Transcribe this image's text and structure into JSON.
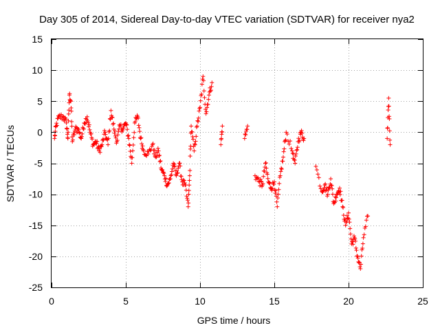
{
  "chart_data": {
    "type": "scatter",
    "title": "Day 305 of 2014, Sidereal Day-to-day VTEC variation (SDTVAR) for receiver nya2",
    "xlabel": "GPS time / hours",
    "ylabel": "SDTVAR / TECUs",
    "xlim": [
      0,
      25
    ],
    "ylim": [
      -25,
      15
    ],
    "xticks": [
      0,
      5,
      10,
      15,
      20,
      25
    ],
    "yticks": [
      15,
      10,
      5,
      0,
      -5,
      -10,
      -15,
      -20,
      -25
    ],
    "xtick_labels": [
      "0",
      "5",
      "10",
      "15",
      "20",
      "25"
    ],
    "ytick_labels": [
      "15",
      "10",
      "5",
      "0",
      "-5",
      "-10",
      "-15",
      "-20",
      "-25"
    ],
    "grid": true,
    "marker": "+",
    "color": "#ff0000",
    "series": [
      {
        "name": "nya2",
        "anchors": [
          [
            0.2,
            -1.0
          ],
          [
            0.3,
            1.0
          ],
          [
            0.5,
            2.5
          ],
          [
            0.8,
            2.5
          ],
          [
            1.0,
            1.5
          ],
          [
            1.1,
            -1.0
          ],
          [
            1.2,
            6.0
          ],
          [
            1.3,
            5.0
          ],
          [
            1.4,
            -1.5
          ],
          [
            1.6,
            0.5
          ],
          [
            1.8,
            0.5
          ],
          [
            2.0,
            -1.0
          ],
          [
            2.2,
            1.5
          ],
          [
            2.4,
            2.5
          ],
          [
            2.6,
            0.0
          ],
          [
            2.8,
            -2.0
          ],
          [
            3.0,
            -1.5
          ],
          [
            3.2,
            -3.0
          ],
          [
            3.4,
            -2.0
          ],
          [
            3.6,
            0.0
          ],
          [
            3.8,
            -2.0
          ],
          [
            4.0,
            3.5
          ],
          [
            4.2,
            0.5
          ],
          [
            4.4,
            -1.5
          ],
          [
            4.6,
            1.0
          ],
          [
            4.8,
            0.5
          ],
          [
            5.0,
            1.5
          ],
          [
            5.2,
            -1.0
          ],
          [
            5.4,
            -5.0
          ],
          [
            5.6,
            1.5
          ],
          [
            5.8,
            2.5
          ],
          [
            6.0,
            -1.0
          ],
          [
            6.2,
            -3.0
          ],
          [
            6.5,
            -3.5
          ],
          [
            6.8,
            -2.0
          ],
          [
            7.0,
            -4.0
          ],
          [
            7.2,
            -3.0
          ],
          [
            7.4,
            -6.0
          ],
          [
            7.6,
            -7.0
          ],
          [
            7.8,
            -8.5
          ],
          [
            8.0,
            -7.5
          ],
          [
            8.2,
            -5.0
          ],
          [
            8.4,
            -7.0
          ],
          [
            8.6,
            -5.0
          ],
          [
            8.8,
            -8.0
          ],
          [
            9.0,
            -8.5
          ],
          [
            9.2,
            -12.0
          ],
          [
            9.3,
            -7.0
          ],
          [
            9.4,
            1.0
          ],
          [
            9.6,
            -3.0
          ],
          [
            9.8,
            1.0
          ],
          [
            10.0,
            4.0
          ],
          [
            10.2,
            9.0
          ],
          [
            10.4,
            3.0
          ],
          [
            10.6,
            6.0
          ],
          [
            10.8,
            8.0
          ],
          [
            11.4,
            -2.0
          ],
          [
            11.5,
            1.0
          ],
          [
            13.0,
            -1.0
          ],
          [
            13.2,
            1.0
          ],
          [
            13.7,
            -7.0
          ],
          [
            14.0,
            -8.0
          ],
          [
            14.2,
            -8.5
          ],
          [
            14.4,
            -5.0
          ],
          [
            14.6,
            -8.0
          ],
          [
            14.8,
            -9.0
          ],
          [
            15.0,
            -8.0
          ],
          [
            15.2,
            -12.0
          ],
          [
            15.4,
            -7.0
          ],
          [
            15.6,
            -4.0
          ],
          [
            15.8,
            0.0
          ],
          [
            16.2,
            -3.0
          ],
          [
            16.4,
            -5.0
          ],
          [
            16.6,
            -1.5
          ],
          [
            16.8,
            0.0
          ],
          [
            17.0,
            -1.0
          ],
          [
            17.8,
            -5.5
          ],
          [
            18.2,
            -9.5
          ],
          [
            18.4,
            -8.5
          ],
          [
            18.6,
            -10.0
          ],
          [
            18.8,
            -7.5
          ],
          [
            19.0,
            -11.5
          ],
          [
            19.2,
            -10.0
          ],
          [
            19.4,
            -9.0
          ],
          [
            19.6,
            -12.0
          ],
          [
            19.8,
            -15.0
          ],
          [
            20.0,
            -13.0
          ],
          [
            20.2,
            -18.0
          ],
          [
            20.4,
            -17.0
          ],
          [
            20.6,
            -20.0
          ],
          [
            20.8,
            -22.0
          ],
          [
            21.0,
            -17.0
          ],
          [
            21.3,
            -13.5
          ],
          [
            22.6,
            -1.0
          ],
          [
            22.7,
            5.5
          ],
          [
            22.8,
            -2.0
          ]
        ]
      }
    ]
  }
}
